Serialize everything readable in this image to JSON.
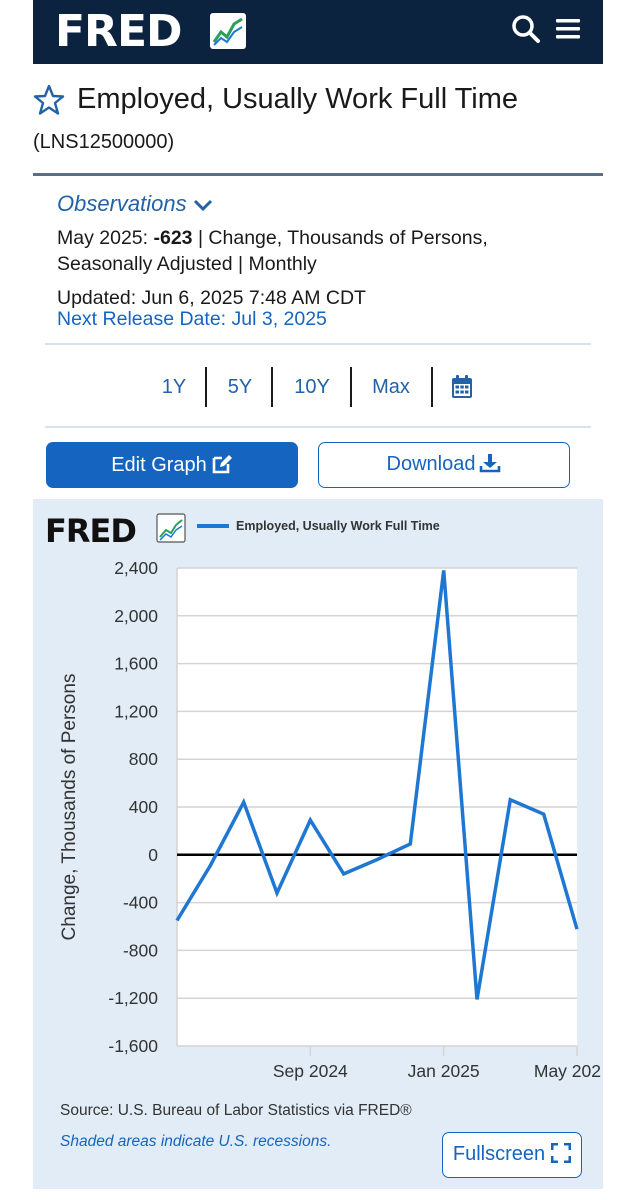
{
  "header": {
    "logo": "FRED",
    "search_icon": "search-icon",
    "menu_icon": "hamburger-menu-icon"
  },
  "series": {
    "title": "Employed, Usually Work Full Time",
    "id": "(LNS12500000)"
  },
  "observations": {
    "toggle_label": "Observations",
    "period": "May 2025:",
    "value": "-623",
    "units_line1": "| Change, Thousands of Persons,",
    "units_line2": "Seasonally Adjusted | Monthly",
    "updated": "Updated: Jun 6, 2025 7:48 AM CDT",
    "next_release": "Next Release Date: Jul 3, 2025"
  },
  "ranges": [
    "1Y",
    "5Y",
    "10Y",
    "Max"
  ],
  "buttons": {
    "edit_graph": "Edit Graph",
    "download": "Download",
    "fullscreen": "Fullscreen"
  },
  "chart_footer": {
    "source": "Source: U.S. Bureau of Labor Statistics via FRED®",
    "shaded_note": "Shaded areas indicate U.S. recessions."
  },
  "colors": {
    "header_bg": "#0c2340",
    "link_blue": "#2462a7",
    "button_blue": "#1565c0",
    "series_line": "#1f77d4",
    "chart_bg": "#e1ecf6"
  },
  "chart_data": {
    "type": "line",
    "logo": "FRED",
    "title": "",
    "xlabel": "",
    "ylabel": "Change, Thousands of Persons",
    "ylim": [
      -1600,
      2400
    ],
    "yticks": [
      2400,
      2000,
      1600,
      1200,
      800,
      400,
      0,
      -400,
      -800,
      -1200,
      -1600
    ],
    "ytick_labels": [
      "2,400",
      "2,000",
      "1,600",
      "1,200",
      "800",
      "400",
      "0",
      "-400",
      "-800",
      "-1,200",
      "-1,600"
    ],
    "xticks": [
      "Sep 2024",
      "Jan 2025",
      "May 202"
    ],
    "xtick_values": [
      "2024-09",
      "2025-01",
      "2025-05"
    ],
    "series": [
      {
        "name": "Employed, Usually Work Full Time",
        "x": [
          "2024-05",
          "2024-06",
          "2024-07",
          "2024-08",
          "2024-09",
          "2024-10",
          "2024-11",
          "2024-12",
          "2025-01",
          "2025-02",
          "2025-03",
          "2025-04",
          "2025-05"
        ],
        "values": [
          -550,
          -90,
          440,
          -320,
          290,
          -160,
          -40,
          90,
          2380,
          -1210,
          460,
          340,
          -623
        ]
      }
    ],
    "grid": true,
    "legend_position": "top"
  }
}
